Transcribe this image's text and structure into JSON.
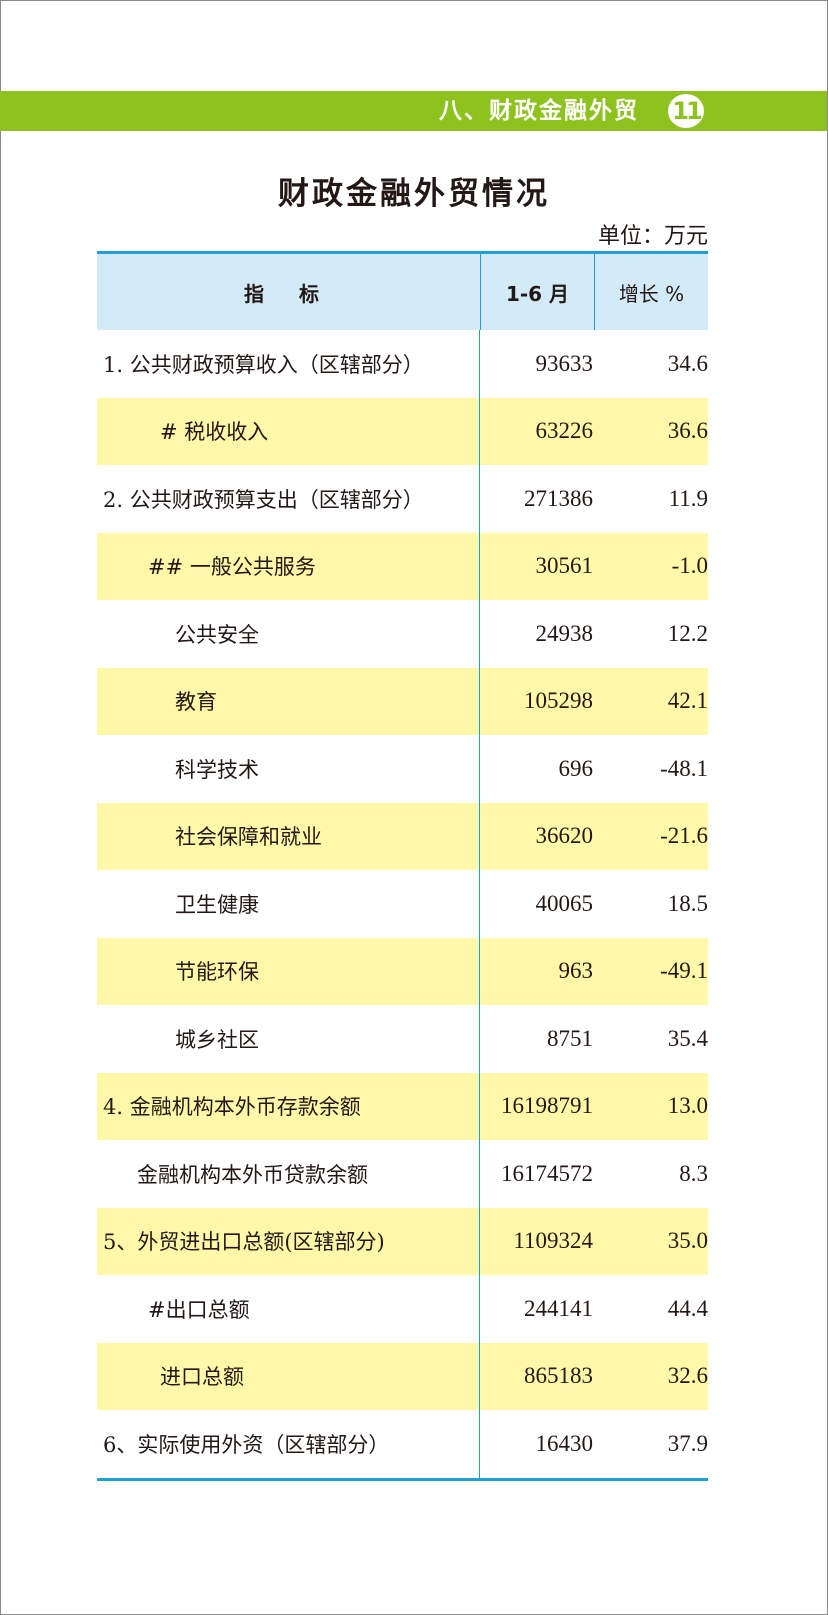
{
  "header": {
    "section": "八、财政金融外贸",
    "page_number": "11",
    "accent_color": "#8dc21f"
  },
  "title": "财政金融外贸情况",
  "unit": "单位：万元",
  "table": {
    "columns": [
      "指 标",
      "1-6 月",
      "增长 %"
    ],
    "rows": [
      {
        "label": "1. 公共财政预算收入（区辖部分）",
        "value": "93633",
        "growth": "34.6",
        "indent": 6,
        "hl": false
      },
      {
        "label": "# 税收收入",
        "value": "63226",
        "growth": "36.6",
        "indent": 63,
        "hl": true
      },
      {
        "label": "2. 公共财政预算支出（区辖部分）",
        "value": "271386",
        "growth": "11.9",
        "indent": 6,
        "hl": false
      },
      {
        "label": "## 一般公共服务",
        "value": "30561",
        "growth": "-1.0",
        "indent": 51,
        "hl": true
      },
      {
        "label": "公共安全",
        "value": "24938",
        "growth": "12.2",
        "indent": 78,
        "hl": false
      },
      {
        "label": "教育",
        "value": "105298",
        "growth": "42.1",
        "indent": 78,
        "hl": true
      },
      {
        "label": "科学技术",
        "value": "696",
        "growth": "-48.1",
        "indent": 78,
        "hl": false
      },
      {
        "label": "社会保障和就业",
        "value": "36620",
        "growth": "-21.6",
        "indent": 78,
        "hl": true
      },
      {
        "label": "卫生健康",
        "value": "40065",
        "growth": "18.5",
        "indent": 78,
        "hl": false
      },
      {
        "label": "节能环保",
        "value": "963",
        "growth": "-49.1",
        "indent": 78,
        "hl": true
      },
      {
        "label": "城乡社区",
        "value": "8751",
        "growth": "35.4",
        "indent": 78,
        "hl": false
      },
      {
        "label": "4. 金融机构本外币存款余额",
        "value": "16198791",
        "growth": "13.0",
        "indent": 6,
        "hl": true
      },
      {
        "label": "金融机构本外币贷款余额",
        "value": "16174572",
        "growth": "8.3",
        "indent": 40,
        "hl": false
      },
      {
        "label": "5、外贸进出口总额(区辖部分)",
        "value": "1109324",
        "growth": "35.0",
        "indent": 6,
        "hl": true
      },
      {
        "label": "#出口总额",
        "value": "244141",
        "growth": "44.4",
        "indent": 51,
        "hl": false
      },
      {
        "label": "进口总额",
        "value": "865183",
        "growth": "32.6",
        "indent": 63,
        "hl": true
      },
      {
        "label": "6、实际使用外资（区辖部分）",
        "value": "16430",
        "growth": "37.9",
        "indent": 6,
        "hl": false
      }
    ]
  }
}
